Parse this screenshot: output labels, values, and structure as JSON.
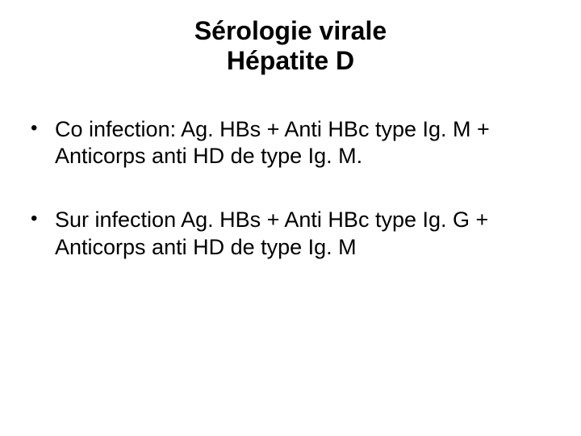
{
  "slide": {
    "title_line1": "Sérologie virale",
    "title_line2": "Hépatite D",
    "bullets": [
      "Co infection: Ag. HBs + Anti HBc type Ig. M + Anticorps anti HD de type Ig. M.",
      "Sur infection Ag. HBs + Anti HBc type Ig. G + Anticorps anti HD de type Ig. M"
    ],
    "colors": {
      "background": "#ffffff",
      "text": "#000000"
    },
    "typography": {
      "title_fontsize": 32,
      "title_weight": "bold",
      "body_fontsize": 27,
      "font_family": "Arial"
    }
  }
}
